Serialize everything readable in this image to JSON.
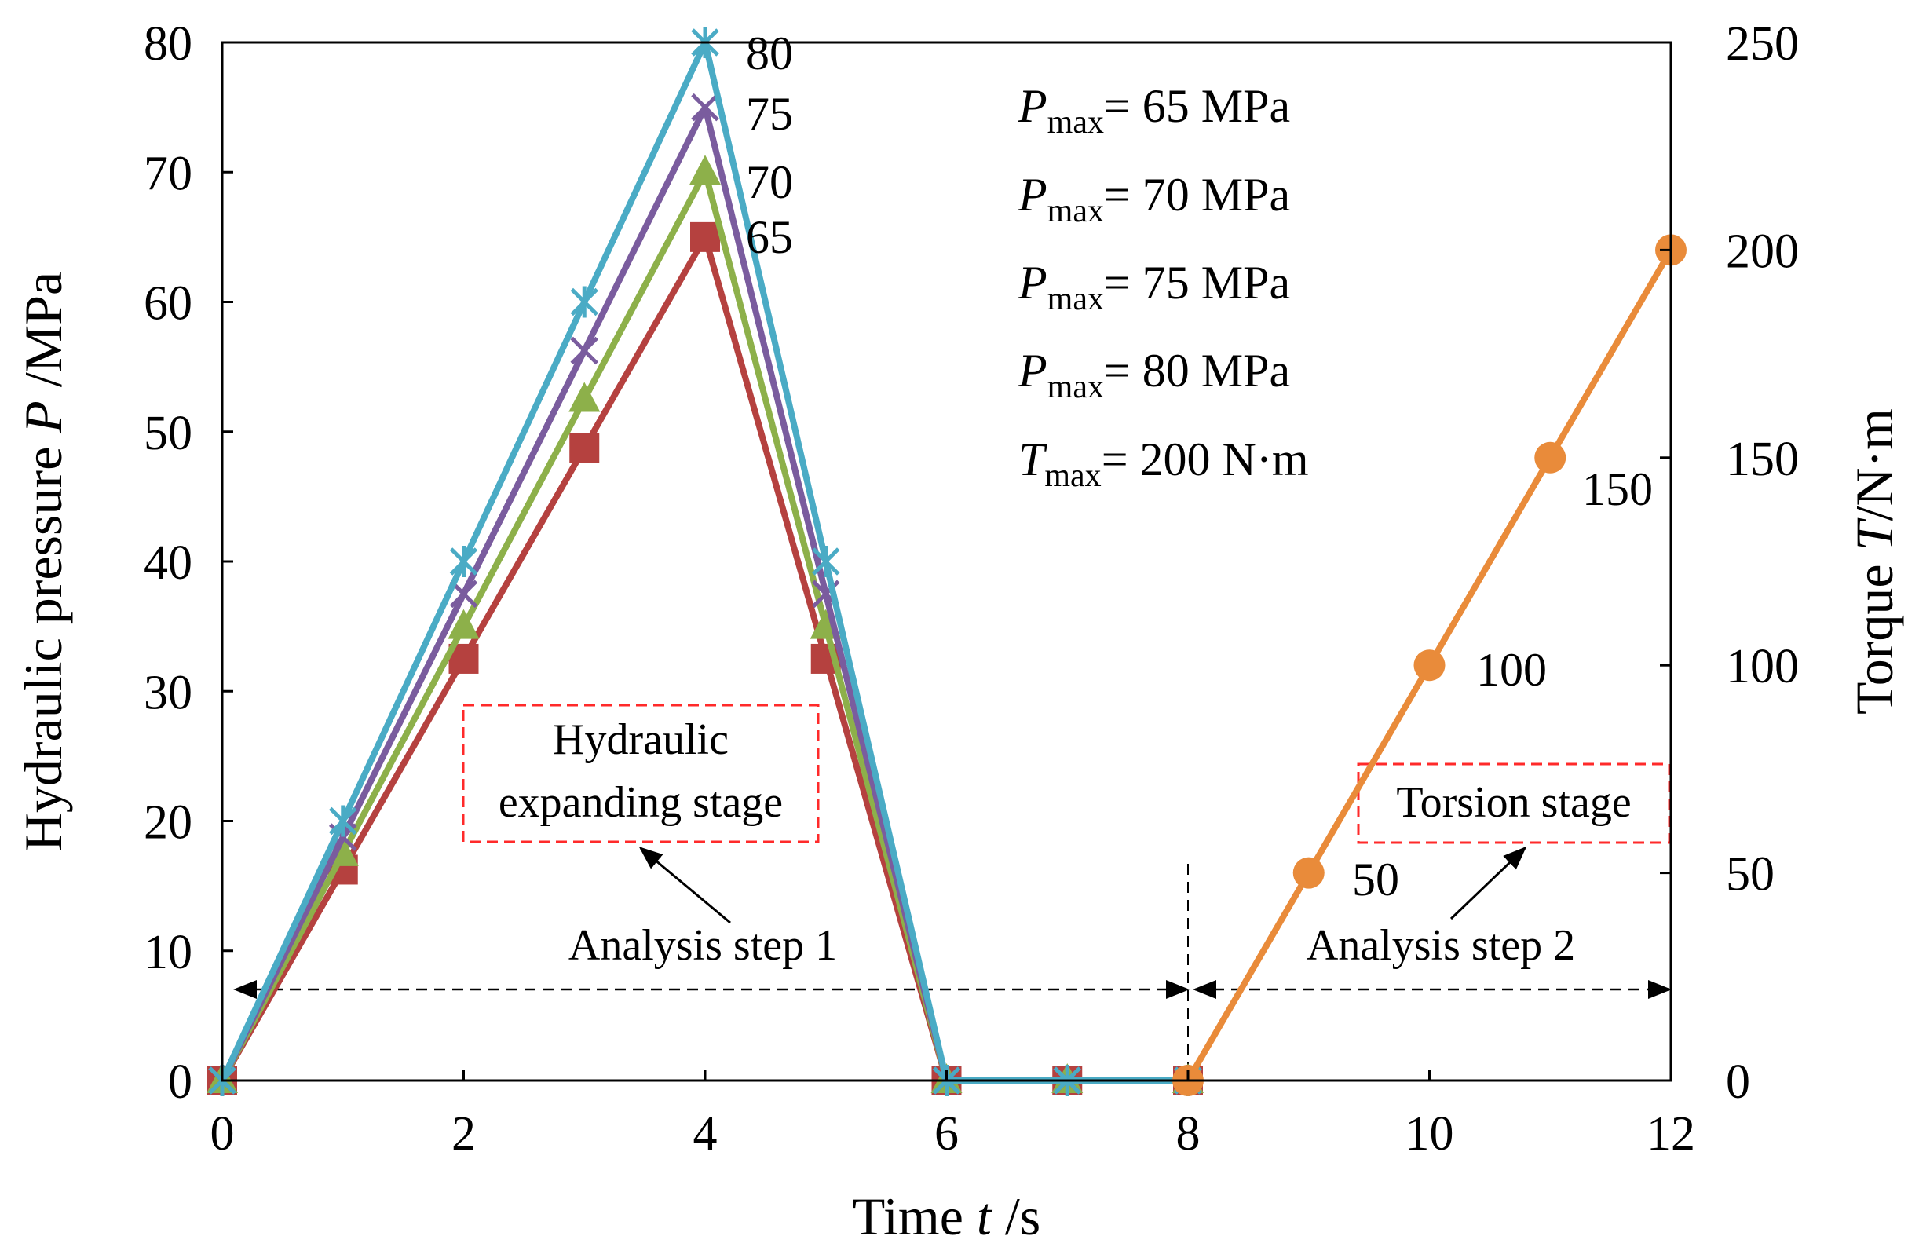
{
  "chart_data": {
    "type": "line",
    "xlabel": {
      "prefix": "Time ",
      "var": "t",
      "suffix": " /s"
    },
    "ylabel_left": {
      "prefix": "Hydraulic pressure ",
      "var": "P",
      "suffix": " /MPa"
    },
    "ylabel_right": {
      "prefix": "Torque ",
      "var": "T",
      "suffix": "/N·m"
    },
    "xlim": [
      0,
      12
    ],
    "ylim_left": [
      0,
      80
    ],
    "ylim_right": [
      0,
      250
    ],
    "xticks": [
      0,
      2,
      4,
      6,
      8,
      10,
      12
    ],
    "yticks_left": [
      0,
      10,
      20,
      30,
      40,
      50,
      60,
      70,
      80
    ],
    "yticks_right": [
      0,
      50,
      100,
      150,
      200,
      250
    ],
    "grid": false,
    "series": [
      {
        "name": "P_max = 65 MPa",
        "axis": "left",
        "color": "#b5413f",
        "marker": "square",
        "x": [
          0,
          1,
          2,
          3,
          4,
          5,
          6,
          7,
          8
        ],
        "y": [
          0,
          16.25,
          32.5,
          48.75,
          65,
          32.5,
          0,
          0,
          0
        ]
      },
      {
        "name": "P_max = 70 MPa",
        "axis": "left",
        "color": "#8db04a",
        "marker": "triangle",
        "x": [
          0,
          1,
          2,
          3,
          4,
          5,
          6,
          7,
          8
        ],
        "y": [
          0,
          17.5,
          35,
          52.5,
          70,
          35,
          0,
          0,
          0
        ]
      },
      {
        "name": "P_max = 75 MPa",
        "axis": "left",
        "color": "#7a5c9e",
        "marker": "x",
        "x": [
          0,
          1,
          2,
          3,
          4,
          5,
          6,
          7,
          8
        ],
        "y": [
          0,
          18.75,
          37.5,
          56.25,
          75,
          37.5,
          0,
          0,
          0
        ]
      },
      {
        "name": "P_max = 80 MPa",
        "axis": "left",
        "color": "#4aabc5",
        "marker": "star",
        "x": [
          0,
          1,
          2,
          3,
          4,
          5,
          6,
          7,
          8
        ],
        "y": [
          0,
          20,
          40,
          60,
          80,
          40,
          0,
          0,
          0
        ]
      },
      {
        "name": "T_max = 200 N·m",
        "axis": "right",
        "color": "#e98b3a",
        "marker": "circle",
        "x": [
          8,
          9,
          10,
          11,
          12
        ],
        "y": [
          0,
          50,
          100,
          150,
          200
        ]
      }
    ],
    "legend": [
      {
        "var": "P",
        "sub": "max",
        "text": "= 65 MPa"
      },
      {
        "var": "P",
        "sub": "max",
        "text": "= 70 MPa"
      },
      {
        "var": "P",
        "sub": "max",
        "text": "= 75 MPa"
      },
      {
        "var": "P",
        "sub": "max",
        "text": "= 80 MPa"
      },
      {
        "var": "T",
        "sub": "max",
        "text": "= 200 N·m"
      }
    ],
    "peak_labels": [
      {
        "text": "80",
        "x": 4,
        "y": 80,
        "axis": "left"
      },
      {
        "text": "75",
        "x": 4,
        "y": 75,
        "axis": "left"
      },
      {
        "text": "70",
        "x": 4,
        "y": 70,
        "axis": "left"
      },
      {
        "text": "65",
        "x": 4,
        "y": 65,
        "axis": "left"
      }
    ],
    "torque_labels": [
      {
        "text": "50",
        "x": 9,
        "y": 50,
        "axis": "right"
      },
      {
        "text": "100",
        "x": 10,
        "y": 100,
        "axis": "right"
      },
      {
        "text": "150",
        "x": 11,
        "y": 150,
        "axis": "right"
      }
    ],
    "annotations": {
      "hydraulic_stage": [
        "Hydraulic",
        "expanding stage"
      ],
      "torsion_stage": "Torsion stage",
      "step1": "Analysis step 1",
      "step2": "Analysis step 2"
    }
  }
}
